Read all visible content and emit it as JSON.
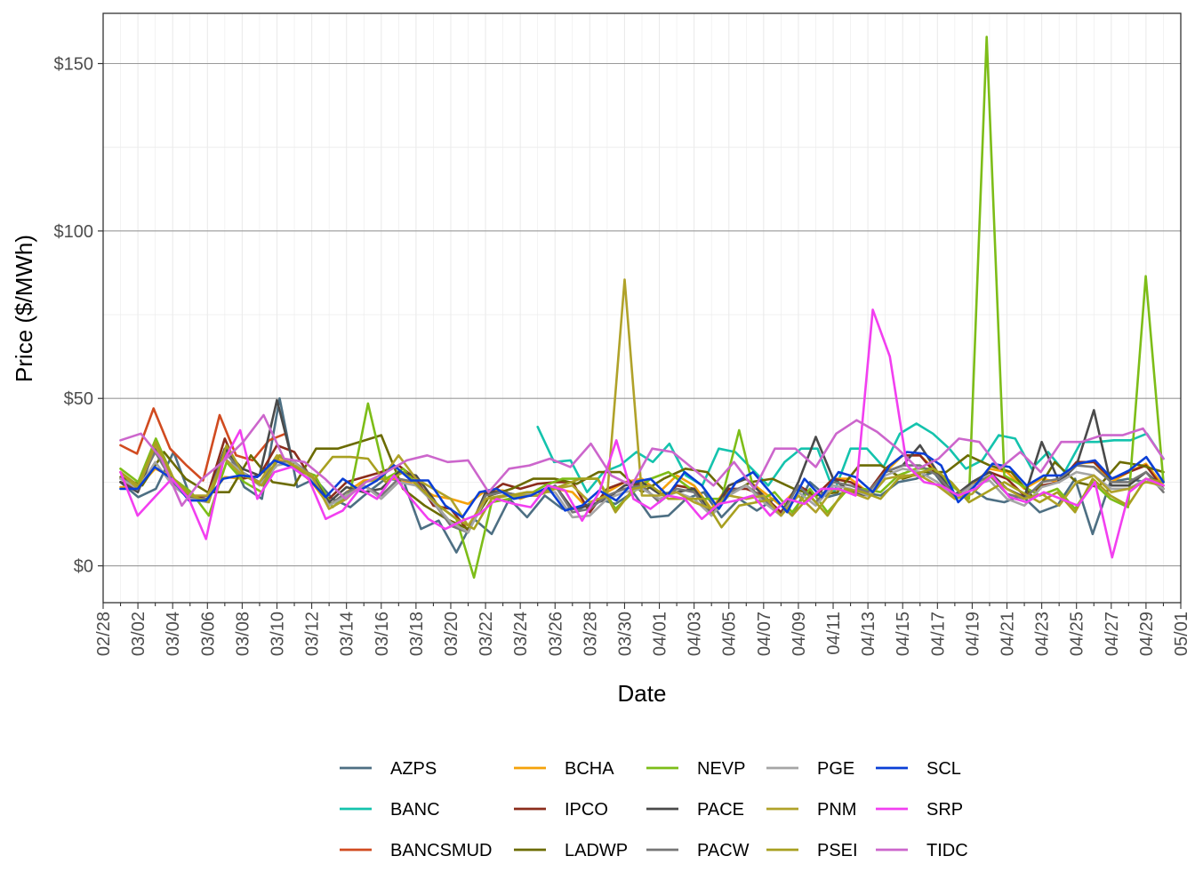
{
  "chart_data": {
    "type": "line",
    "title": "",
    "xlabel": "Date",
    "ylabel": "Price ($/MWh)",
    "ylim": [
      -11,
      165
    ],
    "y_ticks": [
      0,
      50,
      100,
      150
    ],
    "y_tick_labels": [
      "$0",
      "$50",
      "$100",
      "$150"
    ],
    "x_tick_labels": [
      "02/28",
      "03/02",
      "03/04",
      "03/06",
      "03/08",
      "03/10",
      "03/12",
      "03/14",
      "03/16",
      "03/18",
      "03/20",
      "03/22",
      "03/24",
      "03/26",
      "03/28",
      "03/30",
      "04/01",
      "04/03",
      "04/05",
      "04/07",
      "04/09",
      "04/11",
      "04/13",
      "04/15",
      "04/17",
      "04/19",
      "04/21",
      "04/23",
      "04/25",
      "04/27",
      "04/29",
      "05/01"
    ],
    "x_day_range": [
      0,
      62
    ],
    "grid": true,
    "legend_position": "bottom",
    "series": [
      {
        "name": "AZPS",
        "color": "#4d6f83",
        "values": [
          25,
          20.5,
          23,
          34,
          20,
          20,
          35,
          23.5,
          20,
          50,
          23.5,
          26,
          20,
          17.5,
          22,
          26,
          25.5,
          11,
          13.5,
          4,
          14,
          9.5,
          20,
          14.5,
          21,
          17,
          17,
          20,
          18.5,
          22,
          14.5,
          15,
          20,
          22,
          14.5,
          20,
          16.5,
          20,
          15,
          25,
          20.5,
          22,
          22,
          21,
          25,
          26,
          28,
          21,
          23.5,
          20,
          19,
          21,
          16,
          18,
          26,
          9.5,
          25,
          26,
          25,
          25
        ]
      },
      {
        "name": "BANC",
        "color": "#14c3ad",
        "segment_start_day": 25,
        "values": [
          41.5,
          31,
          31.5,
          22,
          28,
          30,
          34,
          31,
          36.5,
          27,
          24,
          35,
          34,
          29,
          24,
          31,
          35,
          35,
          22,
          35,
          35,
          29.5,
          39.5,
          42.5,
          39.5,
          35,
          29,
          31.5,
          39,
          38,
          29,
          34,
          28,
          37,
          37,
          37.5,
          37.5,
          39.5,
          32
        ]
      },
      {
        "name": "BANCSMUD",
        "color": "#d14b20",
        "days_last": 2,
        "values": [
          36,
          33.5,
          47,
          35,
          30,
          25.5,
          45,
          33,
          31.5,
          37.5,
          39.5
        ]
      },
      {
        "name": "BCHA",
        "color": "#f5a20a",
        "values": [
          23.5,
          23.5,
          29,
          26.5,
          20,
          20,
          26.5,
          26,
          27,
          32,
          29.5,
          25,
          18,
          22,
          25.5,
          26,
          26,
          24,
          21,
          20,
          18.5,
          22.5,
          22.5,
          20,
          22,
          23,
          22,
          16.5,
          22,
          25,
          26,
          22,
          27,
          24,
          17,
          24,
          26,
          22,
          18,
          23.5,
          21,
          26,
          26,
          22,
          28,
          33,
          33,
          28,
          21,
          24,
          29,
          28,
          23,
          26,
          25,
          30.5,
          31,
          25,
          28,
          30.5,
          24
        ]
      },
      {
        "name": "IPCO",
        "color": "#8b2c1c",
        "values": [
          25,
          23,
          36,
          25,
          20,
          21,
          38,
          26,
          27,
          36,
          34,
          26,
          20,
          25,
          26.5,
          28,
          30,
          26,
          18,
          17,
          10.5,
          21,
          24.5,
          23,
          24.5,
          25,
          25,
          16,
          23,
          25,
          24,
          19,
          24,
          23,
          16,
          23,
          23,
          21,
          16,
          24,
          21,
          26,
          25,
          22,
          29,
          33,
          33,
          27,
          20.5,
          25,
          28,
          26,
          21,
          24,
          25,
          31,
          31,
          26,
          28,
          30,
          23
        ]
      },
      {
        "name": "LADWP",
        "color": "#6b6b00",
        "values": [
          26.5,
          24,
          34,
          26,
          22,
          22,
          33,
          25,
          24,
          35,
          35,
          37,
          39,
          23,
          18,
          14,
          11,
          21,
          23,
          26,
          26,
          24.5,
          28,
          28,
          22,
          26,
          29,
          28,
          21,
          25,
          26,
          23,
          21,
          22,
          30,
          30,
          26,
          28,
          28,
          33,
          30,
          28,
          20.5,
          31,
          25,
          23.5,
          31,
          30,
          28
        ]
      },
      {
        "name": "NEVP",
        "color": "#7dbd18",
        "values": [
          29,
          25,
          38,
          26,
          22,
          15,
          31,
          25,
          22,
          33,
          29,
          27,
          17.5,
          22,
          48.5,
          26,
          29,
          23,
          18,
          14,
          -3.5,
          19,
          20,
          21,
          24,
          26,
          26,
          26,
          17,
          22,
          26,
          28,
          24,
          20,
          20,
          40.5,
          19,
          22,
          16,
          23,
          16,
          22,
          23,
          22,
          27,
          29,
          29,
          24,
          20,
          158,
          27,
          24,
          21,
          23,
          17,
          25,
          20,
          17.5,
          86.5,
          25
        ]
      },
      {
        "name": "PACE",
        "color": "#4a4a4a",
        "values": [
          25,
          22,
          35,
          26,
          20,
          20,
          35,
          29,
          27,
          49.5,
          29,
          27,
          19,
          23.5,
          22,
          23,
          28,
          27,
          20,
          12,
          10,
          22,
          22,
          21,
          21,
          24,
          17,
          18,
          20,
          24,
          25,
          21.5,
          22,
          23,
          16,
          24,
          26,
          21,
          15,
          25,
          38.5,
          26,
          22,
          21,
          28,
          30,
          36,
          28,
          21,
          25,
          28,
          23,
          20.5,
          37,
          25,
          30,
          46.5,
          24,
          24,
          28,
          23
        ]
      },
      {
        "name": "PACW",
        "color": "#777777",
        "values": [
          26,
          24,
          34,
          25,
          20,
          20,
          34,
          28,
          25,
          31,
          31,
          27,
          18,
          22,
          24,
          21,
          26,
          25,
          19,
          12,
          10,
          21,
          22,
          21,
          21,
          24,
          16,
          17,
          21,
          23,
          24,
          19,
          23,
          22,
          15,
          22,
          24,
          20,
          15,
          24,
          19,
          25,
          24,
          22,
          28,
          30,
          30,
          27,
          21,
          24,
          27,
          21.5,
          20,
          25,
          26,
          30,
          29.5,
          25,
          25,
          28,
          22
        ]
      },
      {
        "name": "PGE",
        "color": "#a5a5a5",
        "values": [
          26,
          23,
          31,
          24,
          20,
          19,
          32,
          28,
          24,
          30,
          31,
          26,
          18,
          21,
          24,
          20,
          25,
          24,
          19,
          13,
          10,
          20,
          21,
          21,
          22,
          22,
          14.5,
          15,
          20,
          22,
          23,
          20,
          22,
          20,
          15,
          21,
          24,
          19,
          15,
          22,
          18,
          24,
          23,
          21,
          27,
          29,
          28,
          25,
          20,
          24,
          25.5,
          20,
          18,
          23.5,
          25,
          28,
          27,
          23,
          23,
          26,
          23
        ]
      },
      {
        "name": "PNM",
        "color": "#b0a22a",
        "values": [
          28,
          23,
          36,
          26,
          21,
          21,
          32,
          27,
          25,
          33,
          30,
          27,
          17,
          20,
          25,
          26,
          33,
          26,
          23,
          20,
          12,
          20,
          21,
          21,
          21,
          23,
          24,
          19,
          21,
          85.5,
          21,
          21,
          22,
          19,
          17,
          21,
          20,
          21,
          15,
          21,
          16,
          23,
          22,
          20,
          26,
          27,
          27,
          24,
          20,
          21.5,
          27,
          23,
          20,
          21.5,
          18,
          25,
          27,
          22,
          23,
          25,
          24
        ]
      },
      {
        "name": "PSEI",
        "color": "#a8a020",
        "values": [
          28,
          24,
          37,
          26,
          21,
          19,
          36,
          27,
          24,
          33,
          29,
          26,
          32.5,
          32.5,
          32,
          25,
          28,
          23,
          18,
          14,
          11,
          20,
          21,
          22,
          22,
          24,
          26,
          26,
          16,
          23,
          24,
          20,
          20,
          20,
          11.5,
          18,
          19,
          20,
          15,
          21,
          15,
          23,
          22,
          20,
          26,
          27.5,
          29,
          25,
          19,
          22,
          25,
          22,
          19,
          22,
          16,
          26,
          21,
          18,
          26,
          25
        ]
      },
      {
        "name": "SCL",
        "color": "#0a3fd6",
        "values": [
          23,
          23,
          29.5,
          26,
          19.5,
          19.5,
          26,
          27,
          26.5,
          31.5,
          29.5,
          26,
          20.5,
          26,
          22.5,
          25.5,
          30,
          25.5,
          25.5,
          18,
          14.5,
          22,
          23,
          20,
          21,
          23.5,
          16.5,
          18,
          22.5,
          19.5,
          25,
          26,
          21,
          28,
          24,
          17,
          25,
          28,
          22,
          16,
          26,
          20.5,
          28,
          26.5,
          22,
          30,
          34,
          33.5,
          30,
          19,
          24,
          30.5,
          29.5,
          24,
          27,
          27,
          30.5,
          31.5,
          26,
          28.5,
          32.5,
          25
        ]
      },
      {
        "name": "SRP",
        "color": "#f23ff0",
        "values": [
          28,
          15,
          20.5,
          26,
          20,
          8,
          31,
          40.5,
          20,
          28,
          29.5,
          26,
          14,
          16.5,
          23,
          20,
          27,
          20,
          14,
          11,
          13.5,
          15.5,
          20,
          18.5,
          17.5,
          24,
          22.5,
          13.5,
          22,
          37.5,
          20,
          17,
          21,
          20,
          14,
          18.5,
          19.5,
          21,
          15,
          20,
          18.5,
          23,
          23,
          21,
          76.5,
          62.5,
          30,
          25,
          24,
          21,
          23,
          27,
          20.5,
          19,
          22,
          20,
          18,
          25,
          2.5,
          22,
          26,
          24
        ]
      },
      {
        "name": "TIDC",
        "color": "#cc66cc",
        "values": [
          37.5,
          39.5,
          32,
          18,
          26,
          31,
          37,
          45,
          32,
          31,
          26,
          20,
          25,
          28,
          31.5,
          33,
          31,
          31.5,
          22,
          29,
          30,
          32,
          29.5,
          36.5,
          27,
          24,
          35,
          34,
          29,
          24,
          31,
          23,
          35,
          35,
          29.5,
          39.5,
          43.5,
          40,
          35,
          29,
          32,
          38,
          37,
          29,
          34,
          28,
          37,
          37,
          39,
          39,
          41,
          32
        ]
      }
    ]
  },
  "legend": {
    "items": [
      "AZPS",
      "BANC",
      "BANCSMUD",
      "BCHA",
      "IPCO",
      "LADWP",
      "NEVP",
      "PACE",
      "PACW",
      "PGE",
      "PNM",
      "PSEI",
      "SCL",
      "SRP",
      "TIDC"
    ]
  }
}
